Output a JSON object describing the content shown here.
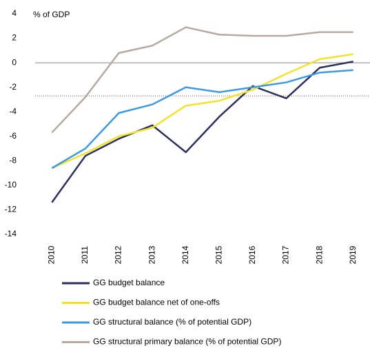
{
  "chart_data": {
    "type": "line",
    "y_axis_label": "% of GDP",
    "categories": [
      "2010",
      "2011",
      "2012",
      "2013",
      "2014",
      "2015",
      "2016",
      "2017",
      "2018",
      "2019"
    ],
    "series": [
      {
        "name": "GG budget balance",
        "color": "#2b2f5e",
        "values": [
          -11.4,
          -7.6,
          -6.2,
          -5.1,
          -7.3,
          -4.4,
          -1.9,
          -2.9,
          -0.4,
          0.1
        ]
      },
      {
        "name": "GG budget balance net of one-offs",
        "color": "#f5e225",
        "values": [
          -8.6,
          -7.4,
          -6.0,
          -5.3,
          -3.5,
          -3.1,
          -2.2,
          -0.9,
          0.3,
          0.7
        ]
      },
      {
        "name": "GG structural balance (% of potential GDP)",
        "color": "#3a9ae8",
        "values": [
          -8.6,
          -7.0,
          -4.1,
          -3.4,
          -2.0,
          -2.4,
          -2.0,
          -1.6,
          -0.8,
          -0.6
        ]
      },
      {
        "name": "GG structural primary balance (% of potential GDP)",
        "color": "#b8a9a0",
        "values": [
          -5.7,
          -2.8,
          0.8,
          1.4,
          2.9,
          2.3,
          2.2,
          2.2,
          2.5,
          2.5
        ]
      }
    ],
    "ylim": [
      -14,
      4
    ],
    "yticks": [
      -14,
      -12,
      -10,
      -8,
      -6,
      -4,
      -2,
      0,
      2,
      4
    ],
    "reference_line": -2.7,
    "grid": false
  }
}
